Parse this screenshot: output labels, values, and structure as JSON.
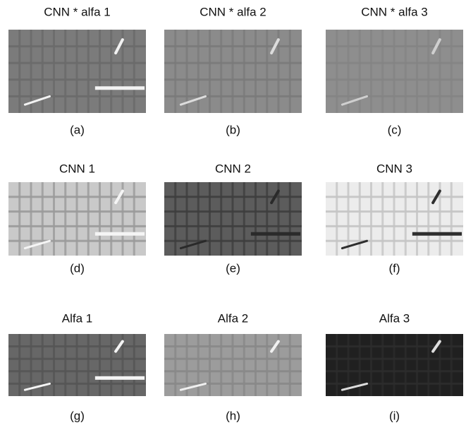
{
  "panels": [
    {
      "title": "CNN * alfa 1",
      "caption": "(a)"
    },
    {
      "title": "CNN * alfa 2",
      "caption": "(b)"
    },
    {
      "title": "CNN * alfa 3",
      "caption": "(c)"
    },
    {
      "title": "CNN 1",
      "caption": "(d)"
    },
    {
      "title": "CNN 2",
      "caption": "(e)"
    },
    {
      "title": "CNN 3",
      "caption": "(f)"
    },
    {
      "title": "Alfa 1",
      "caption": "(g)"
    },
    {
      "title": "Alfa 2",
      "caption": "(h)"
    },
    {
      "title": "Alfa 3",
      "caption": "(i)"
    }
  ]
}
